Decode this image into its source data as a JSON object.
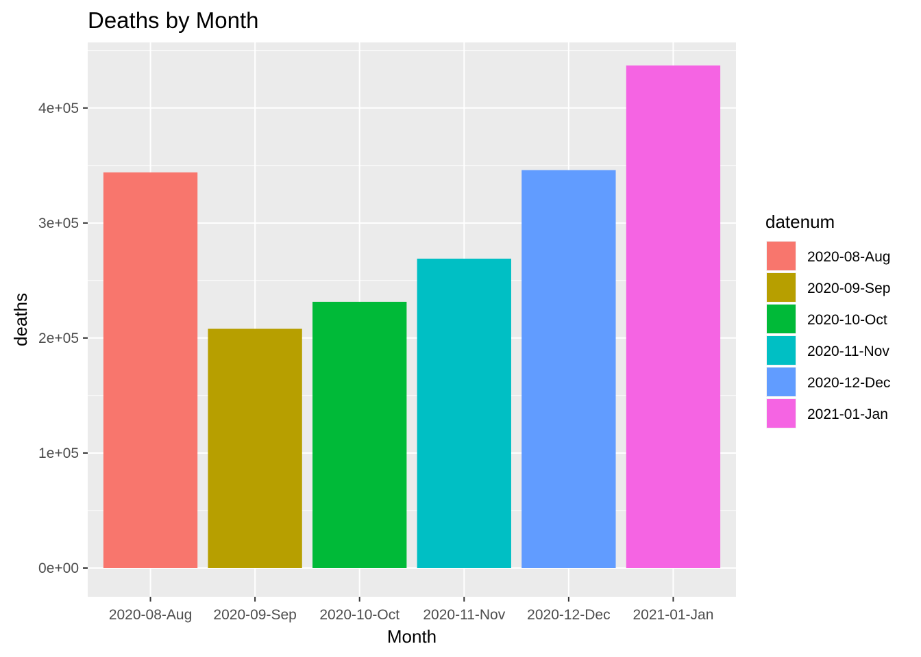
{
  "chart_data": {
    "type": "bar",
    "title": "Deaths by Month",
    "xlabel": "Month",
    "ylabel": "deaths",
    "categories": [
      "2020-08-Aug",
      "2020-09-Sep",
      "2020-10-Oct",
      "2020-11-Nov",
      "2020-12-Dec",
      "2021-01-Jan"
    ],
    "values": [
      344000,
      208000,
      231500,
      269000,
      346000,
      437000
    ],
    "colors": [
      "#F8766D",
      "#B79F00",
      "#00BA38",
      "#00BFC4",
      "#619CFF",
      "#F564E3"
    ],
    "ylim": [
      -25000,
      457000
    ],
    "yticks": [
      0,
      100000,
      200000,
      300000,
      400000
    ],
    "ytick_labels": [
      "0e+00",
      "1e+05",
      "2e+05",
      "3e+05",
      "4e+05"
    ],
    "grid": true,
    "panel_background": "#EBEBEB",
    "grid_color": "#FFFFFF",
    "legend": {
      "title": "datenum",
      "placement": "right",
      "entries": [
        "2020-08-Aug",
        "2020-09-Sep",
        "2020-10-Oct",
        "2020-11-Nov",
        "2020-12-Dec",
        "2021-01-Jan"
      ]
    }
  }
}
